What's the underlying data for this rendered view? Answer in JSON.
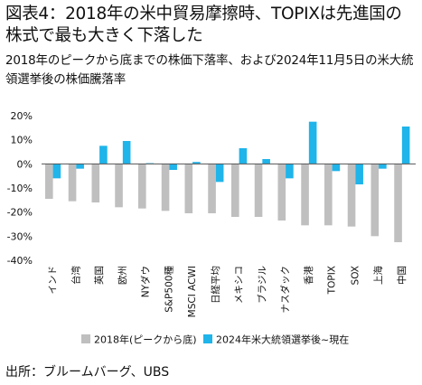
{
  "title": "図表4：2018年の米中貿易摩擦時、TOPIXは先進国の株式で最も大きく下落した",
  "subtitle": "2018年のピークから底までの株価下落率、および2024年11月5日の米大統領選挙後の株価騰落率",
  "source": "出所：ブルームバーグ、UBS",
  "colors": {
    "series2018": "#bfbfbf",
    "series2024": "#1fb4ea"
  },
  "chart_data": {
    "type": "bar",
    "ylim": [
      -40,
      20
    ],
    "yticks": [
      20,
      10,
      0,
      -10,
      -20,
      -30,
      -40
    ],
    "ytick_labels": [
      "20%",
      "10%",
      "0%",
      "-10%",
      "-20%",
      "-30%",
      "-40%"
    ],
    "grid": false,
    "legend_position": "bottom",
    "categories": [
      "インド",
      "台湾",
      "英国",
      "欧州",
      "NYダウ",
      "S&P500種",
      "MSCI ACWI",
      "日経平均",
      "メキシコ",
      "ブラジル",
      "ナスダック",
      "香港",
      "TOPIX",
      "SOX",
      "上海",
      "中国"
    ],
    "series": [
      {
        "name": "2018年(ピークから底)",
        "values": [
          -14.5,
          -15.5,
          -16,
          -18,
          -18.5,
          -19.5,
          -20.5,
          -20.5,
          -22,
          -22,
          -23.5,
          -25.5,
          -25.5,
          -26,
          -30,
          -32.5
        ]
      },
      {
        "name": "2024年米大統領選挙後~現在",
        "values": [
          -6,
          -2,
          7.5,
          9.5,
          0.3,
          -2.5,
          0.8,
          -7.5,
          6.5,
          2,
          -6,
          17.5,
          -3,
          -8.5,
          -2,
          15.5
        ]
      }
    ]
  }
}
